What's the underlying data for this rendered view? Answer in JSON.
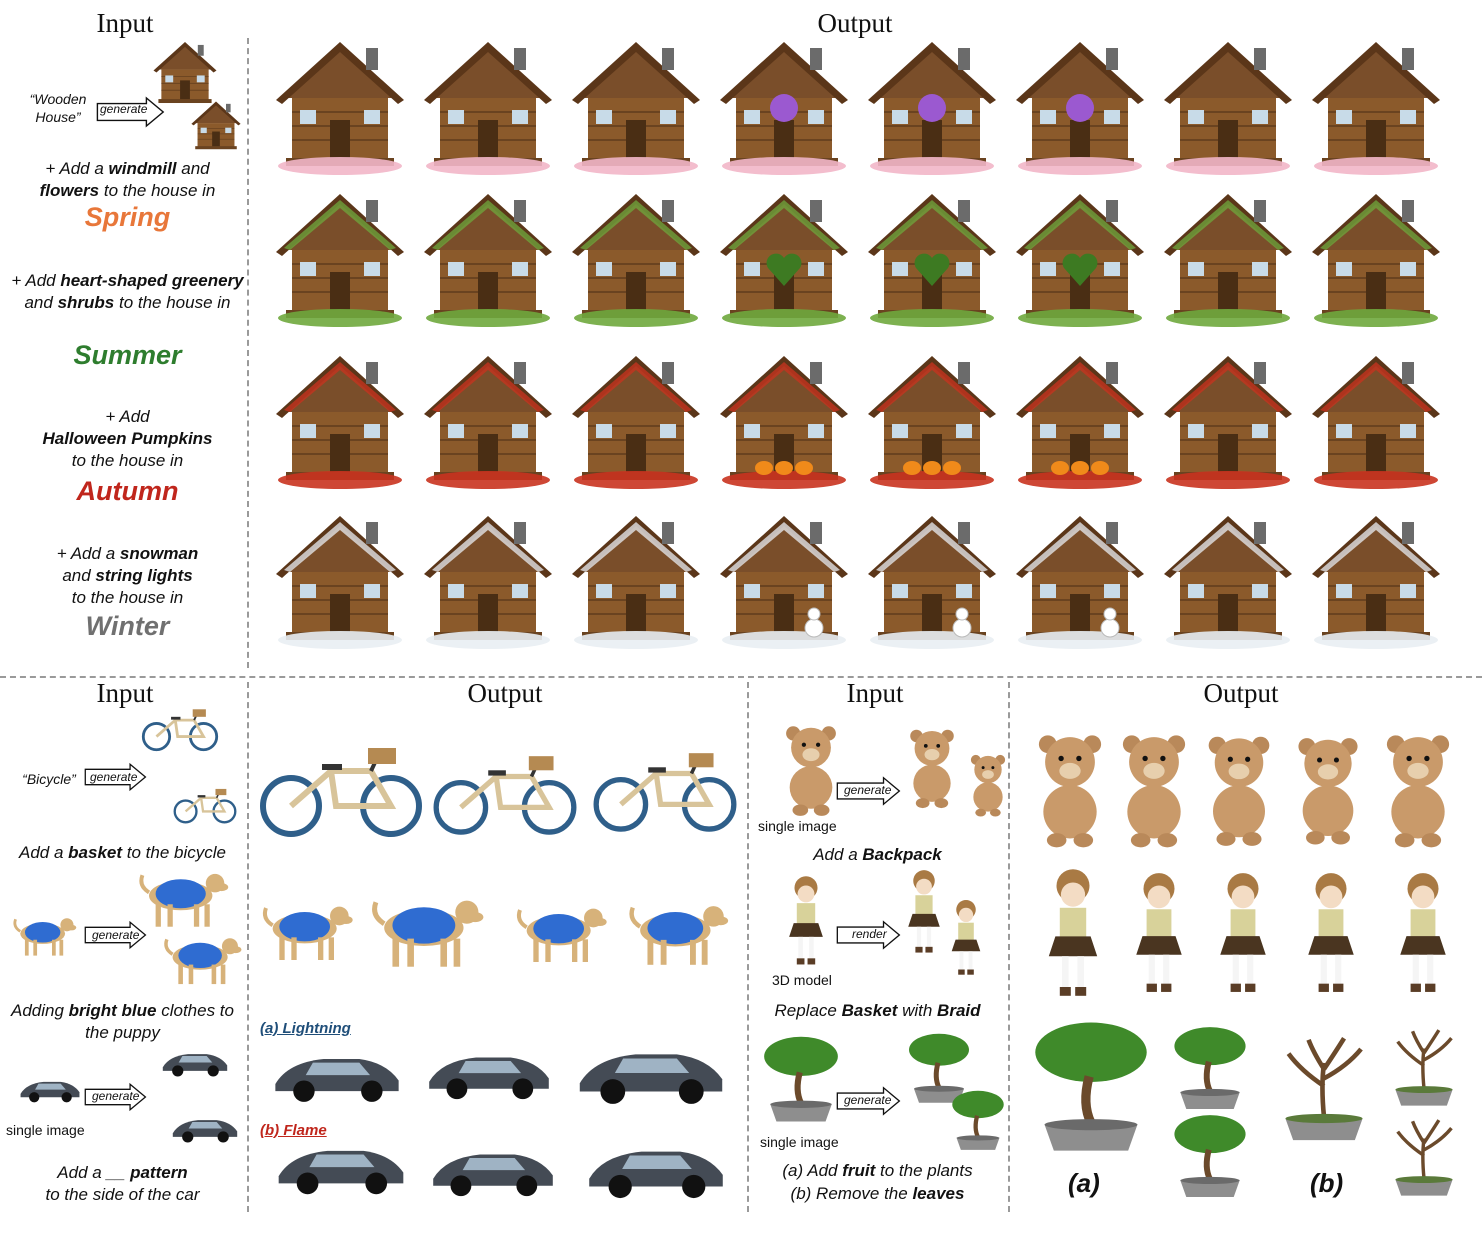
{
  "top": {
    "input_header": "Input",
    "output_header": "Output",
    "prompt_quote": "“Wooden House”",
    "generate_label": "generate",
    "rows": [
      {
        "pre": "+ Add a ",
        "b1": "windmill",
        "mid": " and ",
        "b2": "flowers",
        "post": " to the house in",
        "season": "Spring",
        "color": "#e8773a"
      },
      {
        "pre": "+ Add ",
        "b1": "heart-shaped greenery",
        "mid": " and ",
        "b2": "shrubs",
        "post": " to the house in",
        "season": "Summer",
        "color": "#2e7d2e"
      },
      {
        "pre": "+ Add ",
        "b1": "Halloween Pumpkins",
        "mid": "",
        "b2": "",
        "post": " to the house in",
        "season": "Autumn",
        "color": "#c0261c"
      },
      {
        "pre": "+ Add a ",
        "b1": "snowman",
        "mid": " and ",
        "b2": "string lights",
        "post": " to the house in",
        "season": "Winter",
        "color": "#707070"
      }
    ]
  },
  "bottom_left": {
    "input_header": "Input",
    "output_header": "Output",
    "bicycle_quote": "“Bicycle”",
    "generate_label": "generate",
    "bicycle_caption": {
      "pre": "Add a ",
      "bold": "basket",
      "post": " to the bicycle"
    },
    "puppy_caption": {
      "pre": "Adding ",
      "bold": "bright blue",
      "post": " clothes to the puppy"
    },
    "car_single": "single image",
    "car_caption": {
      "pre": "Add a __ ",
      "bold": "pattern",
      "post": " to the side of the car"
    },
    "lightning_label": "(a) Lightning",
    "flame_label": "(b) Flame"
  },
  "bottom_right": {
    "input_header": "Input",
    "output_header": "Output",
    "bear_single": "single image",
    "generate_label": "generate",
    "render_label": "render",
    "bear_caption": {
      "pre": "Add a ",
      "bold": "Backpack"
    },
    "model_label": "3D model",
    "girl_caption": {
      "pre": "Replace ",
      "b1": "Basket",
      "mid": " with ",
      "b2": "Braid"
    },
    "tree_single": "single image",
    "tree_caption_a": {
      "pre": "(a) Add ",
      "bold": "fruit",
      "post": " to the plants"
    },
    "tree_caption_b": {
      "pre": "(b) Remove the ",
      "bold": "leaves"
    },
    "label_a": "(a)",
    "label_b": "(b)"
  }
}
